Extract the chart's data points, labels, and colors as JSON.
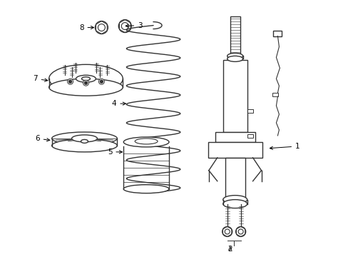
{
  "background_color": "#ffffff",
  "line_color": "#333333",
  "lw": 1.0,
  "fs": 7.5,
  "fig_w": 4.89,
  "fig_h": 3.6
}
